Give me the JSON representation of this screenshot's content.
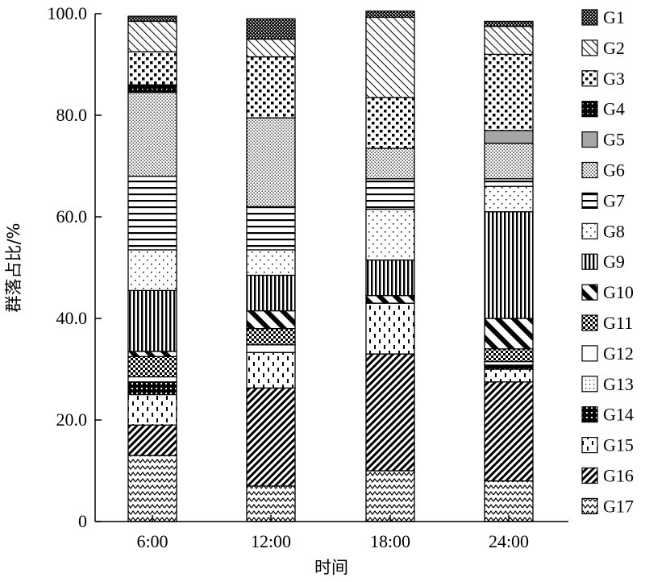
{
  "chart_data": {
    "type": "bar",
    "stacked": true,
    "categories": [
      "6:00",
      "12:00",
      "18:00",
      "24:00"
    ],
    "xlabel": "时间",
    "ylabel": "群落占比/%",
    "ylim": [
      0,
      100
    ],
    "yticks": [
      "0",
      "20.0",
      "40.0",
      "60.0",
      "80.0",
      "100.0"
    ],
    "legend_position": "right",
    "series": [
      {
        "name": "G17",
        "pattern": "zigzag",
        "values": [
          13.0,
          7.0,
          10.0,
          8.0
        ]
      },
      {
        "name": "G16",
        "pattern": "diag-dense",
        "values": [
          6.0,
          19.3,
          23.0,
          19.5
        ]
      },
      {
        "name": "G15",
        "pattern": "dashes",
        "values": [
          6.0,
          7.0,
          10.0,
          2.5
        ]
      },
      {
        "name": "G14",
        "pattern": "black-dots",
        "values": [
          2.5,
          0.0,
          0.0,
          0.8
        ]
      },
      {
        "name": "G13",
        "pattern": "fine-dots",
        "values": [
          0.0,
          0.0,
          0.0,
          0.0
        ]
      },
      {
        "name": "G12",
        "pattern": "white",
        "values": [
          1.0,
          1.5,
          0.0,
          0.7
        ]
      },
      {
        "name": "G11",
        "pattern": "checker",
        "values": [
          4.0,
          3.2,
          0.0,
          2.5
        ]
      },
      {
        "name": "G10",
        "pattern": "diag-thick",
        "values": [
          1.0,
          3.5,
          1.5,
          6.0
        ]
      },
      {
        "name": "G9",
        "pattern": "vertical",
        "values": [
          12.0,
          7.0,
          7.0,
          21.0
        ]
      },
      {
        "name": "G8",
        "pattern": "sparse-dots",
        "values": [
          8.0,
          5.0,
          10.0,
          5.0
        ]
      },
      {
        "name": "G7",
        "pattern": "horizontal",
        "values": [
          14.5,
          8.5,
          6.0,
          1.5
        ]
      },
      {
        "name": "G6",
        "pattern": "dense-dots",
        "values": [
          16.5,
          17.5,
          6.0,
          7.0
        ]
      },
      {
        "name": "G5",
        "pattern": "gray",
        "values": [
          0.0,
          0.0,
          0.0,
          2.5
        ]
      },
      {
        "name": "G4",
        "pattern": "black-squares",
        "values": [
          1.5,
          0.0,
          0.0,
          0.0
        ]
      },
      {
        "name": "G3",
        "pattern": "squares",
        "values": [
          6.5,
          12.0,
          10.0,
          15.0
        ]
      },
      {
        "name": "G2",
        "pattern": "diag-light",
        "values": [
          6.0,
          3.5,
          15.8,
          5.5
        ]
      },
      {
        "name": "G1",
        "pattern": "checker-dark",
        "values": [
          1.0,
          4.0,
          1.2,
          1.0
        ]
      }
    ]
  }
}
